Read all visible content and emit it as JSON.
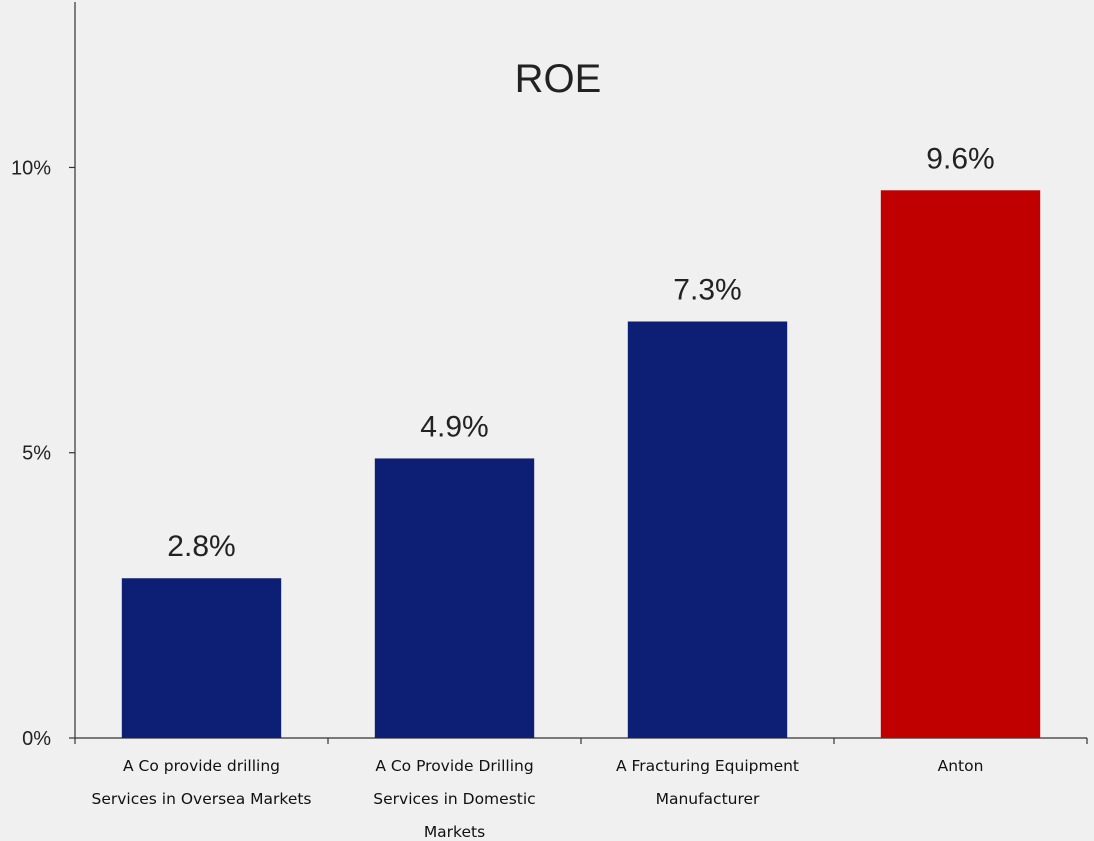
{
  "chart_data": {
    "type": "bar",
    "title": "ROE",
    "categories": [
      [
        "A Co provide drilling",
        "Services in Oversea Markets"
      ],
      [
        "A Co Provide Drilling",
        "Services in Domestic",
        "Markets"
      ],
      [
        "A Fracturing Equipment",
        "Manufacturer"
      ],
      [
        "Anton"
      ]
    ],
    "values": [
      2.8,
      4.9,
      7.3,
      9.6
    ],
    "data_labels": [
      "2.8%",
      "4.9%",
      "7.3%",
      "9.6%"
    ],
    "bar_colors": [
      "#0d1f74",
      "#0d1f74",
      "#0d1f74",
      "#c00000"
    ],
    "y_ticks": [
      {
        "value": 0,
        "label": "0%"
      },
      {
        "value": 5,
        "label": "5%"
      },
      {
        "value": 10,
        "label": "10%"
      }
    ],
    "ylim": [
      0,
      12.9
    ],
    "xlabel": "",
    "ylabel": "",
    "grid": false,
    "legend": "none",
    "background_color": "#f0f0f0"
  }
}
